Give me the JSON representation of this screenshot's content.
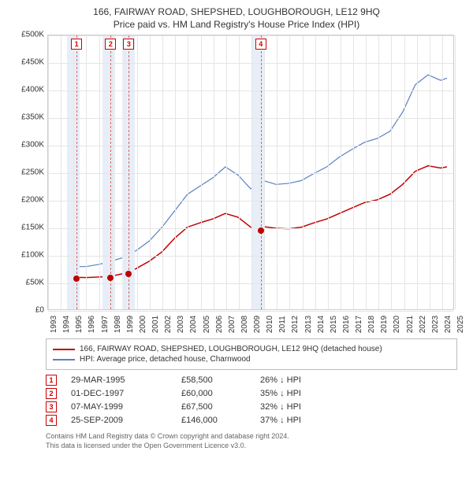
{
  "title_line1": "166, FAIRWAY ROAD, SHEPSHED, LOUGHBOROUGH, LE12 9HQ",
  "title_line2": "Price paid vs. HM Land Registry's House Price Index (HPI)",
  "chart": {
    "type": "line",
    "background_color": "#ffffff",
    "grid_color": "#e5e5e5",
    "shade_color": "#e8eef7",
    "dash_color": "#d66666",
    "currency_prefix": "£",
    "x_range": [
      1993,
      2025
    ],
    "y_range": [
      0,
      500000
    ],
    "y_ticks": [
      0,
      50000,
      100000,
      150000,
      200000,
      250000,
      300000,
      350000,
      400000,
      450000,
      500000
    ],
    "y_tick_labels": [
      "£0",
      "£50K",
      "£100K",
      "£150K",
      "£200K",
      "£250K",
      "£300K",
      "£350K",
      "£400K",
      "£450K",
      "£500K"
    ],
    "x_ticks": [
      1993,
      1994,
      1995,
      1996,
      1997,
      1998,
      1999,
      2000,
      2001,
      2002,
      2003,
      2004,
      2005,
      2006,
      2007,
      2008,
      2009,
      2010,
      2011,
      2012,
      2013,
      2014,
      2015,
      2016,
      2017,
      2018,
      2019,
      2020,
      2021,
      2022,
      2023,
      2024,
      2025
    ],
    "label_fontsize": 10,
    "shade_ranges": [
      [
        1994.5,
        1995.5
      ],
      [
        1997.3,
        1998.3
      ],
      [
        1998.8,
        1999.8
      ],
      [
        2009.0,
        2010.0
      ]
    ],
    "markers": [
      {
        "num": "1",
        "x": 1995.24,
        "y": 58500,
        "color": "#c00000"
      },
      {
        "num": "2",
        "x": 1997.92,
        "y": 60000,
        "color": "#c00000"
      },
      {
        "num": "3",
        "x": 1999.35,
        "y": 67500,
        "color": "#c00000"
      },
      {
        "num": "4",
        "x": 2009.73,
        "y": 146000,
        "color": "#c00000"
      }
    ],
    "series": [
      {
        "name": "property",
        "color": "#c00000",
        "width": 1.5,
        "points": [
          [
            1995.24,
            58500
          ],
          [
            1996,
            58000
          ],
          [
            1997,
            59000
          ],
          [
            1997.92,
            60000
          ],
          [
            1998.5,
            63000
          ],
          [
            1999.35,
            67500
          ],
          [
            2000,
            75000
          ],
          [
            2001,
            88000
          ],
          [
            2002,
            105000
          ],
          [
            2003,
            130000
          ],
          [
            2004,
            150000
          ],
          [
            2005,
            158000
          ],
          [
            2006,
            165000
          ],
          [
            2007,
            175000
          ],
          [
            2008,
            168000
          ],
          [
            2009,
            150000
          ],
          [
            2009.73,
            146000
          ],
          [
            2010,
            151000
          ],
          [
            2011,
            148000
          ],
          [
            2012,
            147000
          ],
          [
            2013,
            150000
          ],
          [
            2014,
            158000
          ],
          [
            2015,
            165000
          ],
          [
            2016,
            175000
          ],
          [
            2017,
            185000
          ],
          [
            2018,
            195000
          ],
          [
            2019,
            200000
          ],
          [
            2020,
            210000
          ],
          [
            2021,
            228000
          ],
          [
            2022,
            252000
          ],
          [
            2023,
            262000
          ],
          [
            2024,
            258000
          ],
          [
            2024.5,
            260000
          ]
        ]
      },
      {
        "name": "hpi",
        "color": "#5a7fc0",
        "width": 1.2,
        "points": [
          [
            1995,
            78000
          ],
          [
            1996,
            78000
          ],
          [
            1997,
            82000
          ],
          [
            1998,
            88000
          ],
          [
            1999,
            95000
          ],
          [
            2000,
            108000
          ],
          [
            2001,
            125000
          ],
          [
            2002,
            150000
          ],
          [
            2003,
            180000
          ],
          [
            2004,
            210000
          ],
          [
            2005,
            225000
          ],
          [
            2006,
            240000
          ],
          [
            2007,
            260000
          ],
          [
            2008,
            245000
          ],
          [
            2009,
            220000
          ],
          [
            2010,
            235000
          ],
          [
            2011,
            228000
          ],
          [
            2012,
            230000
          ],
          [
            2013,
            235000
          ],
          [
            2014,
            248000
          ],
          [
            2015,
            260000
          ],
          [
            2016,
            278000
          ],
          [
            2017,
            292000
          ],
          [
            2018,
            305000
          ],
          [
            2019,
            312000
          ],
          [
            2020,
            325000
          ],
          [
            2021,
            360000
          ],
          [
            2022,
            410000
          ],
          [
            2023,
            428000
          ],
          [
            2024,
            418000
          ],
          [
            2024.5,
            422000
          ]
        ]
      }
    ]
  },
  "legend": [
    {
      "color": "#c00000",
      "label": "166, FAIRWAY ROAD, SHEPSHED, LOUGHBOROUGH, LE12 9HQ (detached house)"
    },
    {
      "color": "#5a7fc0",
      "label": "HPI: Average price, detached house, Charnwood"
    }
  ],
  "sales": [
    {
      "num": "1",
      "date": "29-MAR-1995",
      "price": "£58,500",
      "delta": "26% ↓ HPI"
    },
    {
      "num": "2",
      "date": "01-DEC-1997",
      "price": "£60,000",
      "delta": "35% ↓ HPI"
    },
    {
      "num": "3",
      "date": "07-MAY-1999",
      "price": "£67,500",
      "delta": "32% ↓ HPI"
    },
    {
      "num": "4",
      "date": "25-SEP-2009",
      "price": "£146,000",
      "delta": "37% ↓ HPI"
    }
  ],
  "footer_line1": "Contains HM Land Registry data © Crown copyright and database right 2024.",
  "footer_line2": "This data is licensed under the Open Government Licence v3.0."
}
